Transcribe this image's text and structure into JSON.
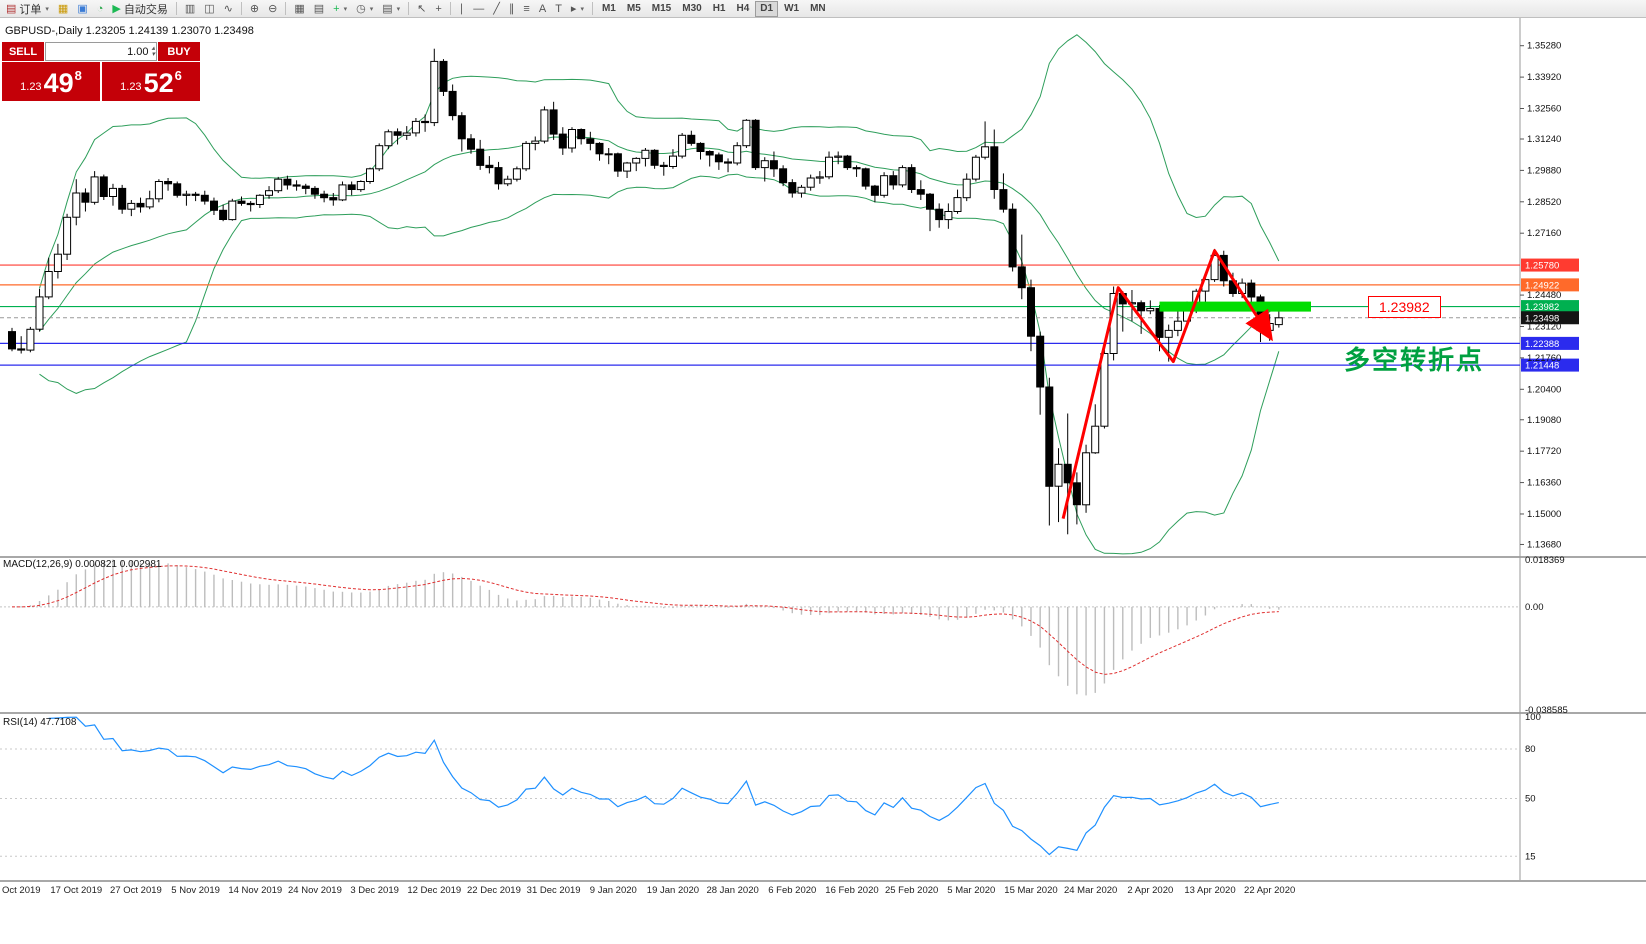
{
  "toolbar": {
    "order_label": "订单",
    "autotrade_label": "自动交易",
    "timeframes": [
      "M1",
      "M5",
      "M15",
      "M30",
      "H1",
      "H4",
      "D1",
      "W1",
      "MN"
    ],
    "active_timeframe": "D1",
    "items": [
      {
        "name": "new-order",
        "icon": "▤",
        "label": "订单",
        "caret": true,
        "color": "#b03030"
      },
      {
        "name": "charts",
        "icon": "▦",
        "color": "#C99700"
      },
      {
        "name": "profiles",
        "icon": "▣",
        "color": "#3A7BD5"
      },
      {
        "name": "alerts",
        "icon": "◔",
        "color": "#2FA84F"
      },
      {
        "name": "autotrading",
        "icon": "▶",
        "label": "自动交易",
        "color": "#1DB954"
      },
      {
        "sep": true
      },
      {
        "name": "bar-chart",
        "icon": "▥"
      },
      {
        "name": "candlestick-chart",
        "icon": "◫"
      },
      {
        "name": "line-chart",
        "icon": "∿"
      },
      {
        "sep": true
      },
      {
        "name": "zoom-in",
        "icon": "⊕"
      },
      {
        "name": "zoom-out",
        "icon": "⊖"
      },
      {
        "sep": true
      },
      {
        "name": "auto-arrange",
        "icon": "▦"
      },
      {
        "name": "grid",
        "icon": "▤"
      },
      {
        "name": "indicators-add",
        "icon": "+",
        "color": "#1DB954",
        "caret": true
      },
      {
        "name": "periods",
        "icon": "◷",
        "caret": true
      },
      {
        "name": "templates",
        "icon": "▤",
        "caret": true
      },
      {
        "sep": true
      },
      {
        "name": "cursor",
        "icon": "↖"
      },
      {
        "name": "crosshair",
        "icon": "+"
      },
      {
        "sep": true
      },
      {
        "name": "vertical-line",
        "icon": "∣"
      },
      {
        "name": "horizontal-line",
        "icon": "―"
      },
      {
        "name": "trendline",
        "icon": "╱"
      },
      {
        "name": "channel",
        "icon": "∥"
      },
      {
        "name": "fibonacci",
        "icon": "≡"
      },
      {
        "name": "text",
        "icon": "A"
      },
      {
        "name": "text-label",
        "icon": "T"
      },
      {
        "name": "arrows",
        "icon": "▸",
        "caret": true
      },
      {
        "sep": true
      }
    ]
  },
  "chart": {
    "title_line": "GBPUSD-,Daily  1.23205 1.24139 1.23070 1.23498",
    "price_tag": "1.23982",
    "annotation_cn": "多空转折点"
  },
  "trade_widget": {
    "sell_label": "SELL",
    "buy_label": "BUY",
    "volume": "1.00",
    "sell_price": {
      "small": "1.23",
      "big": "49",
      "sup": "8"
    },
    "buy_price": {
      "small": "1.23",
      "big": "52",
      "sup": "6"
    }
  },
  "macd": {
    "label": "MACD(12,26,9) 0.000821 0.002981"
  },
  "rsi": {
    "label": "RSI(14) 47.7108"
  },
  "chart_data": {
    "type": "candlestick",
    "symbol": "GBPUSD-",
    "period": "Daily",
    "ohlc": {
      "open": 1.23205,
      "high": 1.24139,
      "low": 1.2307,
      "close": 1.23498
    },
    "y_ticks": [
      "1.35280",
      "1.33920",
      "1.32560",
      "1.31240",
      "1.29880",
      "1.28520",
      "1.27160",
      "1.24480",
      "1.23120",
      "1.21760",
      "1.20400",
      "1.19080",
      "1.17720",
      "1.16360",
      "1.15000",
      "1.13680"
    ],
    "x_labels": [
      [
        "Oct 2019",
        0
      ],
      [
        "17 Oct 2019",
        7
      ],
      [
        "27 Oct 2019",
        13.5
      ],
      [
        "5 Nov 2019",
        20
      ],
      [
        "14 Nov 2019",
        26.5
      ],
      [
        "24 Nov 2019",
        33
      ],
      [
        "3 Dec 2019",
        39.5
      ],
      [
        "12 Dec 2019",
        46
      ],
      [
        "22 Dec 2019",
        52.5
      ],
      [
        "31 Dec 2019",
        59
      ],
      [
        "9 Jan 2020",
        65.5
      ],
      [
        "19 Jan 2020",
        72
      ],
      [
        "28 Jan 2020",
        78.5
      ],
      [
        "6 Feb 2020",
        85
      ],
      [
        "16 Feb 2020",
        91.5
      ],
      [
        "25 Feb 2020",
        98
      ],
      [
        "5 Mar 2020",
        104.5
      ],
      [
        "15 Mar 2020",
        111
      ],
      [
        "24 Mar 2020",
        117.5
      ],
      [
        "2 Apr 2020",
        124
      ],
      [
        "13 Apr 2020",
        130.5
      ],
      [
        "22 Apr 2020",
        137
      ]
    ],
    "levels": [
      {
        "price": 1.2578,
        "label": "1.25780",
        "color": "#FF3B30"
      },
      {
        "price": 1.24922,
        "label": "1.24922",
        "color": "#FF6A2A"
      },
      {
        "price": 1.23982,
        "label": "1.23982",
        "color": "#00B050"
      },
      {
        "price": 1.22388,
        "label": "1.22388",
        "color": "#2B2BEE"
      },
      {
        "price": 1.21448,
        "label": "1.21448",
        "color": "#2B2BEE"
      }
    ],
    "current_price": {
      "price": 1.23498,
      "label": "1.23498",
      "color": "#141414"
    },
    "indicators": {
      "bollinger": {
        "period": 20,
        "deviation": 2,
        "color": "#2E9E5B"
      },
      "macd": {
        "fast": 12,
        "slow": 26,
        "signal": 9,
        "value": 0.000821,
        "signal_value": 0.002981,
        "axis": [
          "0.018369",
          "0.00",
          "-0.038585"
        ],
        "histogram_color": "#BDBDBD",
        "signal_color": "#E03030"
      },
      "rsi": {
        "period": 14,
        "value": 47.7108,
        "axis": [
          "100",
          "80",
          "50",
          "15"
        ],
        "levels": [
          80,
          50,
          15
        ],
        "color": "#1E90FF"
      }
    },
    "annotations": {
      "zigzag": {
        "color": "#FF0000",
        "points": [
          [
            114.5,
            1.148
          ],
          [
            120.5,
            1.248
          ],
          [
            126.5,
            1.216
          ],
          [
            131,
            1.264
          ],
          [
            137,
            1.227
          ]
        ]
      },
      "hbar": {
        "i1": 125,
        "i2": 141.5,
        "price": 1.2398,
        "color": "#00DD00"
      },
      "note_color": "#00A040"
    },
    "candles": [
      [
        1.229,
        1.2306,
        1.2205,
        1.2215
      ],
      [
        1.2215,
        1.227,
        1.2195,
        1.221
      ],
      [
        1.221,
        1.231,
        1.22,
        1.23
      ],
      [
        1.23,
        1.2475,
        1.229,
        1.244
      ],
      [
        1.244,
        1.261,
        1.243,
        1.255
      ],
      [
        1.255,
        1.267,
        1.252,
        1.2625
      ],
      [
        1.2625,
        1.28,
        1.26,
        1.2785
      ],
      [
        1.2785,
        1.295,
        1.275,
        1.289
      ],
      [
        1.289,
        1.291,
        1.281,
        1.285
      ],
      [
        1.285,
        1.2985,
        1.284,
        1.296
      ],
      [
        1.296,
        1.297,
        1.286,
        1.2875
      ],
      [
        1.2875,
        1.293,
        1.2835,
        1.291
      ],
      [
        1.291,
        1.2925,
        1.28,
        1.282
      ],
      [
        1.282,
        1.286,
        1.279,
        1.2845
      ],
      [
        1.2845,
        1.287,
        1.2805,
        1.283
      ],
      [
        1.283,
        1.29,
        1.282,
        1.2865
      ],
      [
        1.2865,
        1.295,
        1.285,
        1.294
      ],
      [
        1.294,
        1.2955,
        1.29,
        1.293
      ],
      [
        1.293,
        1.294,
        1.287,
        1.288
      ],
      [
        1.288,
        1.29,
        1.2835,
        1.2885
      ],
      [
        1.2885,
        1.2895,
        1.2855,
        1.288
      ],
      [
        1.288,
        1.29,
        1.284,
        1.2855
      ],
      [
        1.2855,
        1.287,
        1.2795,
        1.2815
      ],
      [
        1.2815,
        1.284,
        1.2768,
        1.2775
      ],
      [
        1.2775,
        1.2865,
        1.277,
        1.2855
      ],
      [
        1.2855,
        1.2875,
        1.2835,
        1.2845
      ],
      [
        1.2845,
        1.2855,
        1.281,
        1.284
      ],
      [
        1.284,
        1.2885,
        1.2825,
        1.288
      ],
      [
        1.288,
        1.292,
        1.2865,
        1.29
      ],
      [
        1.29,
        1.296,
        1.289,
        1.295
      ],
      [
        1.295,
        1.2965,
        1.2905,
        1.2925
      ],
      [
        1.2925,
        1.2945,
        1.29,
        1.292
      ],
      [
        1.292,
        1.293,
        1.2885,
        1.291
      ],
      [
        1.291,
        1.292,
        1.2865,
        1.2885
      ],
      [
        1.2885,
        1.29,
        1.285,
        1.287
      ],
      [
        1.287,
        1.289,
        1.2835,
        1.286
      ],
      [
        1.286,
        1.294,
        1.2855,
        1.2925
      ],
      [
        1.2925,
        1.294,
        1.288,
        1.2905
      ],
      [
        1.2905,
        1.2945,
        1.2895,
        1.294
      ],
      [
        1.294,
        1.3,
        1.293,
        1.2995
      ],
      [
        1.2995,
        1.3105,
        1.2985,
        1.3095
      ],
      [
        1.3095,
        1.3165,
        1.308,
        1.3155
      ],
      [
        1.3155,
        1.317,
        1.31,
        1.314
      ],
      [
        1.314,
        1.318,
        1.312,
        1.315
      ],
      [
        1.315,
        1.3215,
        1.3135,
        1.32
      ],
      [
        1.32,
        1.323,
        1.3155,
        1.3195
      ],
      [
        1.3195,
        1.3515,
        1.318,
        1.346
      ],
      [
        1.346,
        1.347,
        1.331,
        1.333
      ],
      [
        1.333,
        1.336,
        1.3205,
        1.3225
      ],
      [
        1.3225,
        1.324,
        1.307,
        1.3125
      ],
      [
        1.3125,
        1.3145,
        1.306,
        1.308
      ],
      [
        1.308,
        1.312,
        1.299,
        1.301
      ],
      [
        1.301,
        1.305,
        1.2975,
        1.3
      ],
      [
        1.3,
        1.3025,
        1.2905,
        1.293
      ],
      [
        1.293,
        1.2965,
        1.292,
        1.295
      ],
      [
        1.295,
        1.3005,
        1.294,
        1.2995
      ],
      [
        1.2995,
        1.3115,
        1.2985,
        1.3105
      ],
      [
        1.3105,
        1.3135,
        1.3075,
        1.3115
      ],
      [
        1.3115,
        1.3265,
        1.3105,
        1.325
      ],
      [
        1.325,
        1.3285,
        1.312,
        1.3145
      ],
      [
        1.3145,
        1.3175,
        1.3055,
        1.3085
      ],
      [
        1.3085,
        1.3175,
        1.3065,
        1.3165
      ],
      [
        1.3165,
        1.317,
        1.31,
        1.3125
      ],
      [
        1.3125,
        1.3155,
        1.3075,
        1.3105
      ],
      [
        1.3105,
        1.311,
        1.303,
        1.306
      ],
      [
        1.306,
        1.3085,
        1.3015,
        1.306
      ],
      [
        1.306,
        1.3065,
        1.296,
        1.2985
      ],
      [
        1.2985,
        1.3025,
        1.2955,
        1.302
      ],
      [
        1.302,
        1.3045,
        1.2985,
        1.304
      ],
      [
        1.304,
        1.3085,
        1.3005,
        1.3075
      ],
      [
        1.3075,
        1.308,
        1.2995,
        1.301
      ],
      [
        1.301,
        1.3025,
        1.2965,
        1.3005
      ],
      [
        1.3005,
        1.308,
        1.2995,
        1.305
      ],
      [
        1.305,
        1.315,
        1.304,
        1.314
      ],
      [
        1.314,
        1.316,
        1.3095,
        1.3105
      ],
      [
        1.3105,
        1.311,
        1.3035,
        1.307
      ],
      [
        1.307,
        1.3075,
        1.3005,
        1.3055
      ],
      [
        1.3055,
        1.3065,
        1.299,
        1.3025
      ],
      [
        1.3025,
        1.304,
        1.298,
        1.302
      ],
      [
        1.302,
        1.311,
        1.301,
        1.3095
      ],
      [
        1.3095,
        1.321,
        1.3085,
        1.3205
      ],
      [
        1.3205,
        1.321,
        1.299,
        1.3
      ],
      [
        1.3,
        1.3045,
        1.294,
        1.303
      ],
      [
        1.303,
        1.307,
        1.296,
        1.2995
      ],
      [
        1.2995,
        1.301,
        1.292,
        1.2935
      ],
      [
        1.2935,
        1.295,
        1.287,
        1.289
      ],
      [
        1.289,
        1.2925,
        1.287,
        1.2915
      ],
      [
        1.2915,
        1.297,
        1.29,
        1.2955
      ],
      [
        1.2955,
        1.2985,
        1.293,
        1.296
      ],
      [
        1.296,
        1.307,
        1.295,
        1.3045
      ],
      [
        1.3045,
        1.307,
        1.3015,
        1.305
      ],
      [
        1.305,
        1.3055,
        1.299,
        1.3
      ],
      [
        1.3,
        1.301,
        1.296,
        1.2995
      ],
      [
        1.2995,
        1.3,
        1.2905,
        1.292
      ],
      [
        1.292,
        1.2925,
        1.285,
        1.288
      ],
      [
        1.288,
        1.298,
        1.287,
        1.2965
      ],
      [
        1.2965,
        1.2985,
        1.2905,
        1.2925
      ],
      [
        1.2925,
        1.301,
        1.2915,
        1.3
      ],
      [
        1.3,
        1.3015,
        1.289,
        1.2905
      ],
      [
        1.2905,
        1.2945,
        1.286,
        1.2885
      ],
      [
        1.2885,
        1.289,
        1.2725,
        1.282
      ],
      [
        1.282,
        1.2845,
        1.274,
        1.2775
      ],
      [
        1.2775,
        1.2845,
        1.2735,
        1.281
      ],
      [
        1.281,
        1.2905,
        1.28,
        1.287
      ],
      [
        1.287,
        1.2975,
        1.2855,
        1.295
      ],
      [
        1.295,
        1.3055,
        1.294,
        1.3045
      ],
      [
        1.3045,
        1.32,
        1.3035,
        1.309
      ],
      [
        1.309,
        1.3165,
        1.2865,
        1.2905
      ],
      [
        1.2905,
        1.2975,
        1.2805,
        1.282
      ],
      [
        1.282,
        1.2845,
        1.255,
        1.257
      ],
      [
        1.257,
        1.271,
        1.243,
        1.248
      ],
      [
        1.248,
        1.2515,
        1.2205,
        1.227
      ],
      [
        1.227,
        1.229,
        1.193,
        1.205
      ],
      [
        1.205,
        1.209,
        1.145,
        1.162
      ],
      [
        1.162,
        1.1785,
        1.1465,
        1.1715
      ],
      [
        1.1715,
        1.1935,
        1.1412,
        1.1635
      ],
      [
        1.1635,
        1.168,
        1.1455,
        1.154
      ],
      [
        1.154,
        1.18,
        1.1505,
        1.1765
      ],
      [
        1.1765,
        1.1975,
        1.176,
        1.188
      ],
      [
        1.188,
        1.221,
        1.187,
        1.2195
      ],
      [
        1.2195,
        1.2485,
        1.2165,
        1.2455
      ],
      [
        1.2455,
        1.2465,
        1.229,
        1.241
      ],
      [
        1.241,
        1.247,
        1.2335,
        1.2415
      ],
      [
        1.2415,
        1.2425,
        1.228,
        1.238
      ],
      [
        1.238,
        1.2425,
        1.2365,
        1.239
      ],
      [
        1.239,
        1.2405,
        1.2205,
        1.2265
      ],
      [
        1.2265,
        1.232,
        1.216,
        1.2295
      ],
      [
        1.2295,
        1.239,
        1.227,
        1.2335
      ],
      [
        1.2335,
        1.242,
        1.2305,
        1.2385
      ],
      [
        1.2385,
        1.2475,
        1.237,
        1.2465
      ],
      [
        1.2465,
        1.2525,
        1.2405,
        1.2515
      ],
      [
        1.2515,
        1.2648,
        1.2505,
        1.262
      ],
      [
        1.262,
        1.264,
        1.2485,
        1.251
      ],
      [
        1.251,
        1.2545,
        1.244,
        1.2455
      ],
      [
        1.2455,
        1.252,
        1.2435,
        1.25
      ],
      [
        1.25,
        1.2515,
        1.2405,
        1.244
      ],
      [
        1.244,
        1.245,
        1.2245,
        1.2295
      ],
      [
        1.2295,
        1.2365,
        1.225,
        1.2325
      ],
      [
        1.23205,
        1.24139,
        1.2307,
        1.23498
      ]
    ]
  }
}
